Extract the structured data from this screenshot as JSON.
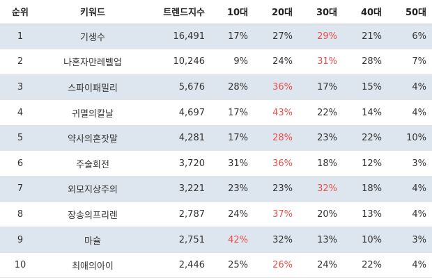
{
  "table": {
    "headers": {
      "rank": "순위",
      "keyword": "키워드",
      "trend_index": "트렌드지수",
      "age10": "10대",
      "age20": "20대",
      "age30": "30대",
      "age40": "40대",
      "age50": "50대"
    },
    "highlight_color": "#e8504a",
    "shade_color": "#dde6ee",
    "rows": [
      {
        "rank": "1",
        "keyword": "기생수",
        "trend_index": "16,491",
        "age10": "17%",
        "age20": "27%",
        "age30": "29%",
        "age40": "21%",
        "age50": "6%",
        "max_col": "age30"
      },
      {
        "rank": "2",
        "keyword": "나혼자만레벨업",
        "trend_index": "10,246",
        "age10": "9%",
        "age20": "24%",
        "age30": "31%",
        "age40": "28%",
        "age50": "7%",
        "max_col": "age30"
      },
      {
        "rank": "3",
        "keyword": "스파이패밀리",
        "trend_index": "5,676",
        "age10": "28%",
        "age20": "36%",
        "age30": "17%",
        "age40": "15%",
        "age50": "4%",
        "max_col": "age20"
      },
      {
        "rank": "4",
        "keyword": "귀멸의칼날",
        "trend_index": "4,697",
        "age10": "17%",
        "age20": "43%",
        "age30": "22%",
        "age40": "14%",
        "age50": "4%",
        "max_col": "age20"
      },
      {
        "rank": "5",
        "keyword": "약사의혼잣말",
        "trend_index": "4,281",
        "age10": "17%",
        "age20": "28%",
        "age30": "23%",
        "age40": "22%",
        "age50": "10%",
        "max_col": "age20"
      },
      {
        "rank": "6",
        "keyword": "주술회전",
        "trend_index": "3,720",
        "age10": "31%",
        "age20": "36%",
        "age30": "18%",
        "age40": "12%",
        "age50": "3%",
        "max_col": "age20"
      },
      {
        "rank": "7",
        "keyword": "외모지상주의",
        "trend_index": "3,221",
        "age10": "23%",
        "age20": "23%",
        "age30": "32%",
        "age40": "18%",
        "age50": "4%",
        "max_col": "age30"
      },
      {
        "rank": "8",
        "keyword": "장송의프리렌",
        "trend_index": "2,787",
        "age10": "24%",
        "age20": "37%",
        "age30": "20%",
        "age40": "13%",
        "age50": "4%",
        "max_col": "age20"
      },
      {
        "rank": "9",
        "keyword": "마슐",
        "trend_index": "2,751",
        "age10": "42%",
        "age20": "32%",
        "age30": "13%",
        "age40": "10%",
        "age50": "3%",
        "max_col": "age10"
      },
      {
        "rank": "10",
        "keyword": "최애의아이",
        "trend_index": "2,446",
        "age10": "25%",
        "age20": "26%",
        "age30": "24%",
        "age40": "22%",
        "age50": "4%",
        "max_col": "age20"
      }
    ]
  }
}
